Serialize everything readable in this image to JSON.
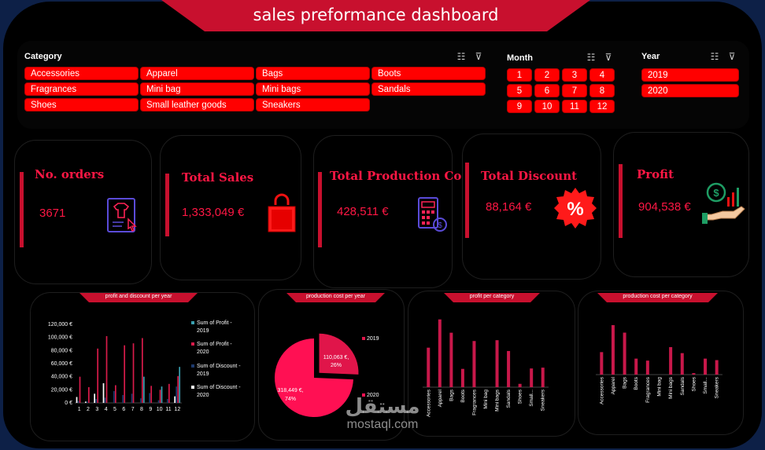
{
  "title": "sales preformance dashboard",
  "colors": {
    "accent": "#c8102e",
    "chip": "#ff0000",
    "kpi_text": "#ff1744",
    "pie_main": "#ff1053",
    "pie_slice": "#e0154a"
  },
  "slicers": {
    "category": {
      "header": "Category",
      "items": [
        "Accessories",
        "Apparel",
        "Bags",
        "Boots",
        "Fragrances",
        "Mini bag",
        "Mini bags",
        "Sandals",
        "Shoes",
        "Small leather goods",
        "Sneakers"
      ]
    },
    "month": {
      "header": "Month",
      "items": [
        "1",
        "2",
        "3",
        "4",
        "5",
        "6",
        "7",
        "8",
        "9",
        "10",
        "11",
        "12"
      ]
    },
    "year": {
      "header": "Year",
      "items": [
        "2019",
        "2020"
      ]
    },
    "icons": [
      "multi-select-icon",
      "clear-filter-icon"
    ]
  },
  "kpis": [
    {
      "title": "No. orders",
      "value": "3671",
      "icon": "order-form-icon"
    },
    {
      "title": "Total Sales",
      "value": "1,333,049 €",
      "icon": "shopping-bag-icon"
    },
    {
      "title": "Total Production Cost",
      "value": "428,511 €",
      "icon": "calculator-icon"
    },
    {
      "title": "Total Discount",
      "value": "88,164 €",
      "icon": "percent-badge-icon"
    },
    {
      "title": "Profit",
      "value": "904,538 €",
      "icon": "profit-hand-icon"
    }
  ],
  "chart_data": [
    {
      "type": "bar",
      "title": "profit and discount per year",
      "categories": [
        "1",
        "2",
        "3",
        "4",
        "5",
        "6",
        "7",
        "8",
        "9",
        "10",
        "11",
        "12"
      ],
      "y_ticks": [
        "0 €",
        "20,000 €",
        "40,000 €",
        "60,000 €",
        "80,000 €",
        "100,000 €",
        "120,000 €"
      ],
      "ylim": [
        0,
        120000
      ],
      "series": [
        {
          "name": "Sum of Profit - 2019",
          "color": "#3aa0b0",
          "values": [
            0,
            0,
            0,
            0,
            0,
            0,
            0,
            40000,
            0,
            25000,
            0,
            55000
          ]
        },
        {
          "name": "Sum of Profit - 2020",
          "color": "#d81b4a",
          "values": [
            40000,
            24000,
            83000,
            102000,
            27000,
            88000,
            91000,
            99000,
            26000,
            20000,
            29000,
            41000
          ]
        },
        {
          "name": "Sum of Discount - 2019",
          "color": "#1d3a6e",
          "values": [
            3000,
            2000,
            6000,
            8000,
            18000,
            12000,
            14000,
            7000,
            15000,
            4000,
            6000,
            25000
          ]
        },
        {
          "name": "Sum of Discount - 2020",
          "color": "#ffffff",
          "values": [
            9000,
            2000,
            14000,
            30000,
            0,
            0,
            0,
            0,
            0,
            0,
            0,
            10000
          ]
        }
      ]
    },
    {
      "type": "pie",
      "title": "production cost per year",
      "categories": [
        "2019",
        "2020"
      ],
      "values": [
        110063,
        318449
      ],
      "labels": [
        "110,063 €,\n26%",
        "318,449 €,\n74%"
      ],
      "legend": [
        "2019",
        "2020"
      ]
    },
    {
      "type": "bar",
      "title": "profit per category",
      "categories": [
        "Accessories",
        "Apparel",
        "Bags",
        "Boots",
        "Fragrances",
        "Mini bag",
        "Mini bags",
        "Sandals",
        "Shoes",
        "Small...",
        "Sneakers"
      ],
      "values": [
        95000,
        163000,
        131000,
        44000,
        111000,
        0,
        113000,
        87000,
        8000,
        45000,
        47000
      ],
      "ylim": [
        0,
        170000
      ]
    },
    {
      "type": "bar",
      "title": "production cost per category",
      "categories": [
        "Accessories",
        "Apparel",
        "Bags",
        "Boots",
        "Fragrances",
        "Mini bag",
        "Mini bags",
        "Sandals",
        "Shoes",
        "Small...",
        "Sneakers"
      ],
      "values": [
        45000,
        99000,
        84000,
        32000,
        28000,
        0,
        55000,
        43000,
        3000,
        32000,
        29000
      ],
      "ylim": [
        0,
        110000
      ]
    }
  ],
  "watermark": {
    "arabic": "مستقل",
    "latin": "mostaql.com"
  }
}
